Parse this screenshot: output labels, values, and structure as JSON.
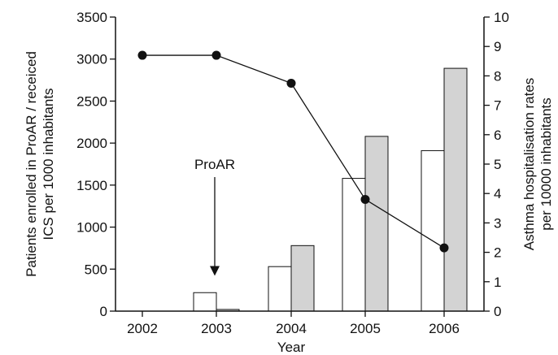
{
  "chart_data": {
    "type": "bar",
    "title": "",
    "categories": [
      "2002",
      "2003",
      "2004",
      "2005",
      "2006"
    ],
    "xlabel": "Year",
    "ylabel_left": [
      "Patients enrolled in ProAR / receiced",
      "ICS per 1000 inhabitants"
    ],
    "ylabel_right": [
      "Asthma hospitalisation rates",
      "per 10000 inhabitants"
    ],
    "ylim_left": [
      0,
      3500
    ],
    "yticks_left": [
      0,
      500,
      1000,
      1500,
      2000,
      2500,
      3000,
      3500
    ],
    "ylim_right": [
      0,
      10
    ],
    "yticks_right": [
      0,
      1,
      2,
      3,
      4,
      5,
      6,
      7,
      8,
      9,
      10
    ],
    "grid": false,
    "legend": "none",
    "series": [
      {
        "kind": "bar",
        "axis": "left",
        "fill": "#ffffff",
        "values": [
          0,
          220,
          530,
          1580,
          1910
        ]
      },
      {
        "kind": "bar",
        "axis": "left",
        "fill": "#d3d3d3",
        "values": [
          0,
          20,
          780,
          2080,
          2890
        ]
      },
      {
        "kind": "line",
        "axis": "right",
        "color": "#111111",
        "values": [
          8.7,
          8.7,
          7.75,
          3.8,
          2.15
        ]
      }
    ],
    "annotations": [
      {
        "text": "ProAR",
        "category": "2003",
        "arrow_to_value": 1.2,
        "axis": "right"
      }
    ]
  }
}
